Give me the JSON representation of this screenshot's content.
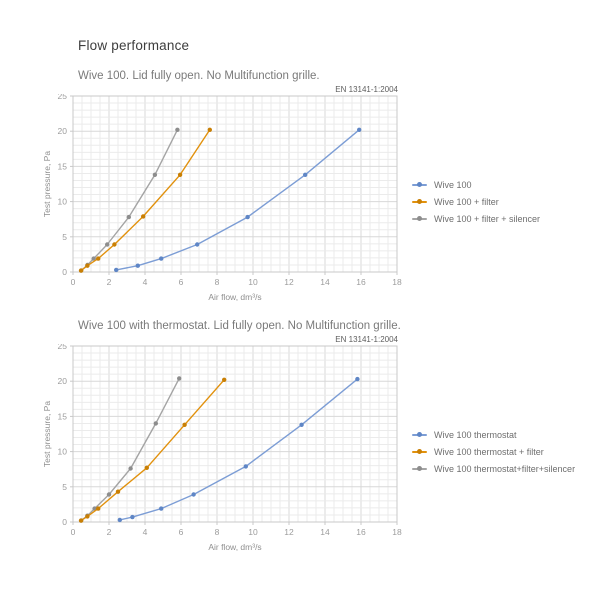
{
  "page_title": "Flow performance",
  "colors": {
    "blue": "#7c9dd5",
    "blue_marker": "#5f86c6",
    "orange": "#e1910d",
    "orange_marker": "#c97f04",
    "gray": "#a4a4a4",
    "gray_marker": "#8d8d8d",
    "grid_minor": "#ebebeb",
    "grid_major": "#d8d8d8",
    "plot_border": "#c9c9c9",
    "tick_text": "#9c9c9c",
    "axis_text": "#8f8f8f"
  },
  "chart_data": [
    {
      "type": "line",
      "title": "Wive 100. Lid fully open. No Multifunction grille.",
      "standard": "EN 13141-1:2004",
      "xlabel": "Air flow, dm³/s",
      "ylabel": "Test pressure, Pa",
      "xlim": [
        0,
        18
      ],
      "ylim": [
        0,
        25
      ],
      "xticks": [
        0,
        2,
        4,
        6,
        8,
        10,
        12,
        14,
        16,
        18
      ],
      "yticks": [
        0,
        5,
        10,
        15,
        20,
        25
      ],
      "minor_x_step": 0.5,
      "minor_y_step": 1,
      "grid": "on",
      "legend_position": "right",
      "series": [
        {
          "name": "Wive 100",
          "color_key": "blue",
          "points": [
            [
              2.4,
              0.3
            ],
            [
              3.6,
              0.9
            ],
            [
              4.9,
              1.9
            ],
            [
              6.9,
              3.9
            ],
            [
              9.7,
              7.8
            ],
            [
              12.9,
              13.8
            ],
            [
              15.9,
              20.2
            ]
          ]
        },
        {
          "name": "Wive 100 + filter",
          "color_key": "orange",
          "points": [
            [
              0.45,
              0.2
            ],
            [
              0.8,
              0.9
            ],
            [
              1.4,
              1.9
            ],
            [
              2.3,
              3.9
            ],
            [
              3.9,
              7.9
            ],
            [
              5.95,
              13.8
            ],
            [
              7.6,
              20.2
            ]
          ]
        },
        {
          "name": "Wive 100 + filter + silencer",
          "color_key": "gray",
          "points": [
            [
              0.45,
              0.2
            ],
            [
              0.8,
              1.0
            ],
            [
              1.15,
              1.9
            ],
            [
              1.9,
              3.9
            ],
            [
              3.1,
              7.8
            ],
            [
              4.55,
              13.8
            ],
            [
              5.8,
              20.2
            ]
          ]
        }
      ]
    },
    {
      "type": "line",
      "title": "Wive 100 with thermostat. Lid fully open. No Multifunction grille.",
      "standard": "EN 13141-1:2004",
      "xlabel": "Air flow, dm³/s",
      "ylabel": "Test pressure, Pa",
      "xlim": [
        0,
        18
      ],
      "ylim": [
        0,
        25
      ],
      "xticks": [
        0,
        2,
        4,
        6,
        8,
        10,
        12,
        14,
        16,
        18
      ],
      "yticks": [
        0,
        5,
        10,
        15,
        20,
        25
      ],
      "minor_x_step": 0.5,
      "minor_y_step": 1,
      "grid": "on",
      "legend_position": "right",
      "series": [
        {
          "name": "Wive 100 thermostat",
          "color_key": "blue",
          "points": [
            [
              2.6,
              0.3
            ],
            [
              3.3,
              0.7
            ],
            [
              4.9,
              1.9
            ],
            [
              6.7,
              3.9
            ],
            [
              9.6,
              7.9
            ],
            [
              12.7,
              13.8
            ],
            [
              15.8,
              20.3
            ]
          ]
        },
        {
          "name": "Wive 100 thermostat + filter",
          "color_key": "orange",
          "points": [
            [
              0.45,
              0.2
            ],
            [
              0.8,
              0.8
            ],
            [
              1.4,
              1.9
            ],
            [
              2.5,
              4.3
            ],
            [
              4.1,
              7.7
            ],
            [
              6.2,
              13.8
            ],
            [
              8.4,
              20.2
            ]
          ]
        },
        {
          "name": "Wive 100 thermostat+filter+silencer",
          "color_key": "gray",
          "points": [
            [
              0.45,
              0.2
            ],
            [
              0.8,
              0.9
            ],
            [
              1.2,
              1.9
            ],
            [
              2.0,
              3.9
            ],
            [
              3.2,
              7.6
            ],
            [
              4.6,
              14.0
            ],
            [
              5.9,
              20.4
            ]
          ]
        }
      ]
    }
  ]
}
